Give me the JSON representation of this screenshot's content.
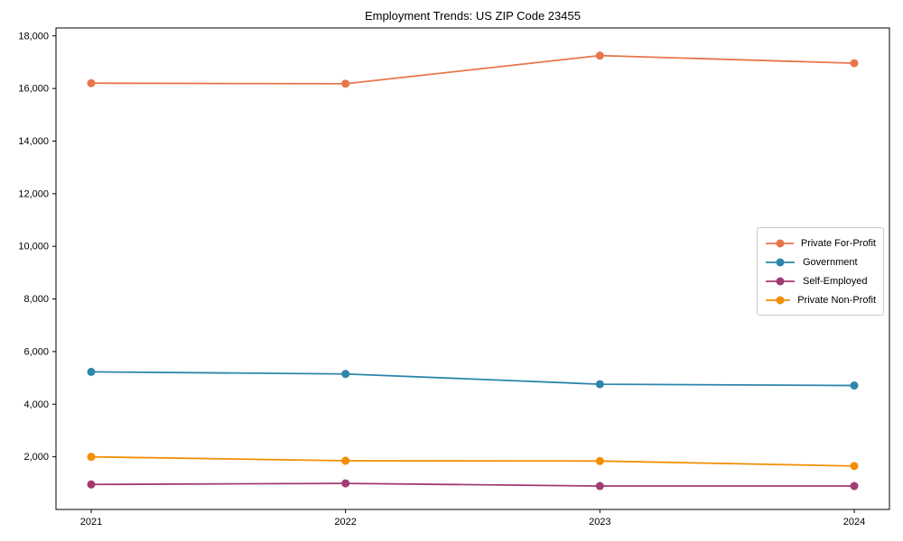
{
  "title": "Employment Trends: US ZIP Code 23455",
  "chart_data": {
    "type": "line",
    "title": "Employment Trends: US ZIP Code 23455",
    "xlabel": "",
    "ylabel": "",
    "categories": [
      "2021",
      "2022",
      "2023",
      "2024"
    ],
    "series": [
      {
        "name": "Private For-Profit",
        "color": "#E8764B",
        "values": [
          16200,
          16180,
          17250,
          16960
        ]
      },
      {
        "name": "Government",
        "color": "#2E86AB",
        "values": [
          5230,
          5150,
          4760,
          4710
        ]
      },
      {
        "name": "Self-Employed",
        "color": "#A23B72",
        "values": [
          950,
          990,
          890,
          890
        ]
      },
      {
        "name": "Private Non-Profit",
        "color": "#F18F01",
        "values": [
          2000,
          1850,
          1840,
          1650
        ]
      }
    ],
    "ylim": [
      0,
      18300
    ],
    "yticks": [
      2000,
      4000,
      6000,
      8000,
      10000,
      12000,
      14000,
      16000,
      18000
    ],
    "ytick_labels": [
      "2,000",
      "4,000",
      "6,000",
      "8,000",
      "10,000",
      "12,000",
      "14,000",
      "16,000",
      "18,000"
    ],
    "grid": false,
    "legend_position": "middle-right",
    "frame": true,
    "marker": "circle"
  }
}
